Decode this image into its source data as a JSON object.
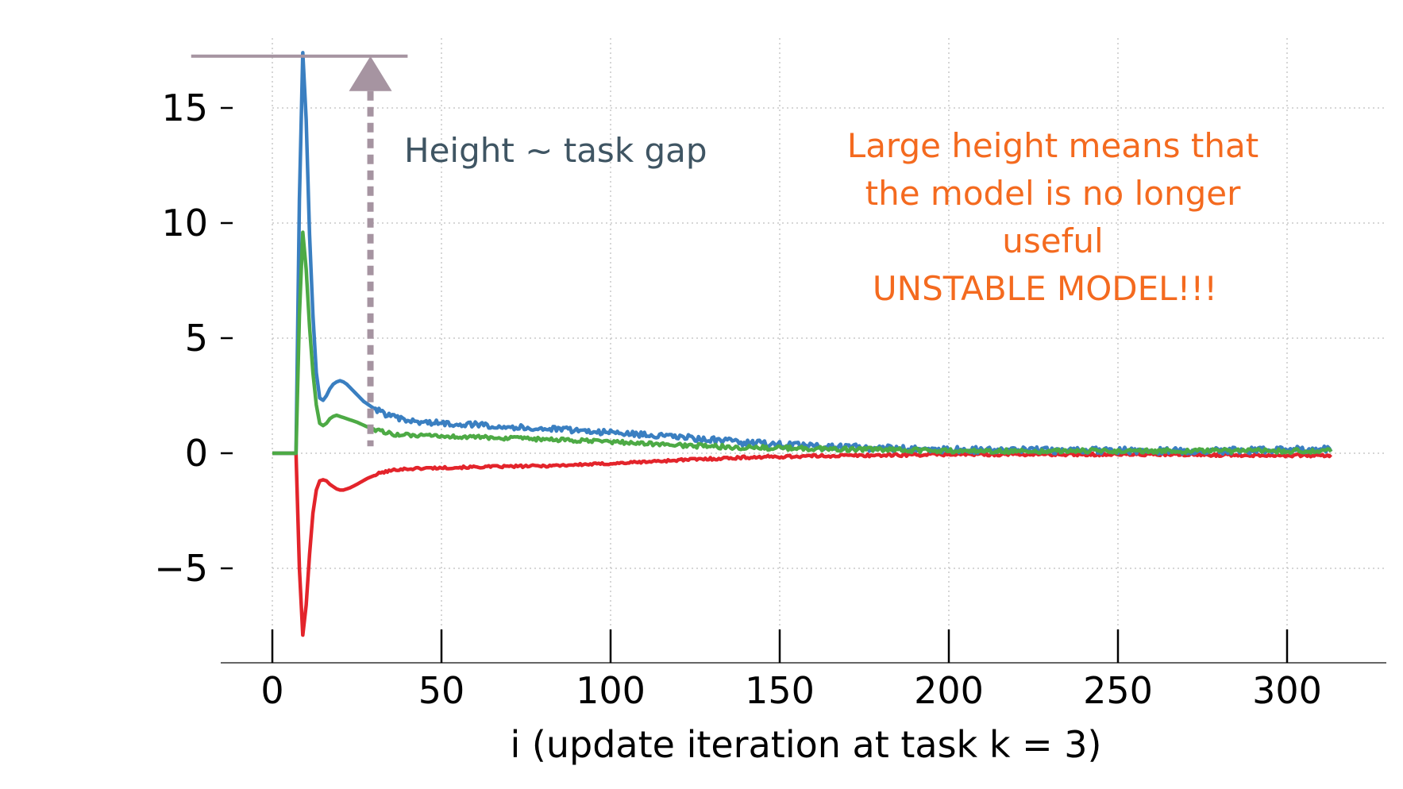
{
  "chart_data": {
    "type": "line",
    "title": "",
    "xlabel": "i (update iteration at task k = 3)",
    "ylabel": "",
    "xlim": [
      -15,
      328
    ],
    "ylim": [
      -9,
      18
    ],
    "grid": true,
    "x_ticks": [
      0,
      50,
      100,
      150,
      200,
      250,
      300
    ],
    "x_tick_labels": [
      "0",
      "50",
      "100",
      "150",
      "200",
      "250",
      "300"
    ],
    "y_ticks": [
      -5,
      0,
      5,
      10,
      15
    ],
    "y_tick_labels": [
      "−5",
      "0",
      "5",
      "10",
      "15"
    ],
    "x_max": 313,
    "series": [
      {
        "name": "blue",
        "color": "#3a7fc1",
        "points": [
          [
            0,
            0
          ],
          [
            7,
            0
          ],
          [
            8,
            11
          ],
          [
            9,
            17.4
          ],
          [
            10,
            14.5
          ],
          [
            11,
            9.5
          ],
          [
            12,
            6
          ],
          [
            13,
            3.5
          ],
          [
            14,
            2.4
          ],
          [
            15,
            2.3
          ],
          [
            16,
            2.5
          ],
          [
            17,
            2.8
          ],
          [
            18,
            3.0
          ],
          [
            19,
            3.1
          ],
          [
            20,
            3.15
          ],
          [
            21,
            3.1
          ],
          [
            22,
            3.0
          ],
          [
            23,
            2.85
          ],
          [
            25,
            2.55
          ],
          [
            27,
            2.25
          ],
          [
            30,
            1.95
          ],
          [
            35,
            1.6
          ],
          [
            40,
            1.4
          ],
          [
            45,
            1.35
          ],
          [
            50,
            1.3
          ],
          [
            60,
            1.25
          ],
          [
            75,
            1.1
          ],
          [
            90,
            1.0
          ],
          [
            100,
            0.9
          ],
          [
            120,
            0.7
          ],
          [
            140,
            0.45
          ],
          [
            160,
            0.3
          ],
          [
            180,
            0.22
          ],
          [
            200,
            0.15
          ],
          [
            240,
            0.12
          ],
          [
            280,
            0.1
          ],
          [
            313,
            0.2
          ]
        ],
        "noise": 0.12
      },
      {
        "name": "green",
        "color": "#4daa45",
        "points": [
          [
            0,
            0
          ],
          [
            7,
            0
          ],
          [
            8,
            6
          ],
          [
            9,
            9.6
          ],
          [
            10,
            8
          ],
          [
            11,
            5.5
          ],
          [
            12,
            3.5
          ],
          [
            13,
            2.1
          ],
          [
            14,
            1.3
          ],
          [
            15,
            1.2
          ],
          [
            16,
            1.3
          ],
          [
            17,
            1.5
          ],
          [
            18,
            1.6
          ],
          [
            19,
            1.65
          ],
          [
            20,
            1.6
          ],
          [
            22,
            1.5
          ],
          [
            25,
            1.35
          ],
          [
            28,
            1.15
          ],
          [
            32,
            0.95
          ],
          [
            37,
            0.8
          ],
          [
            45,
            0.75
          ],
          [
            60,
            0.7
          ],
          [
            80,
            0.6
          ],
          [
            100,
            0.5
          ],
          [
            120,
            0.35
          ],
          [
            140,
            0.25
          ],
          [
            160,
            0.2
          ],
          [
            200,
            0.1
          ],
          [
            250,
            0.1
          ],
          [
            313,
            0.1
          ]
        ],
        "noise": 0.08
      },
      {
        "name": "red",
        "color": "#e3242b",
        "points": [
          [
            0,
            0
          ],
          [
            7,
            0
          ],
          [
            8,
            -5
          ],
          [
            9,
            -7.9
          ],
          [
            10,
            -6.6
          ],
          [
            11,
            -4.4
          ],
          [
            12,
            -2.6
          ],
          [
            13,
            -1.6
          ],
          [
            14,
            -1.2
          ],
          [
            15,
            -1.15
          ],
          [
            16,
            -1.2
          ],
          [
            17,
            -1.35
          ],
          [
            18,
            -1.45
          ],
          [
            19,
            -1.55
          ],
          [
            20,
            -1.6
          ],
          [
            21,
            -1.6
          ],
          [
            23,
            -1.5
          ],
          [
            25,
            -1.35
          ],
          [
            28,
            -1.1
          ],
          [
            32,
            -0.85
          ],
          [
            37,
            -0.7
          ],
          [
            45,
            -0.65
          ],
          [
            60,
            -0.6
          ],
          [
            80,
            -0.55
          ],
          [
            100,
            -0.45
          ],
          [
            120,
            -0.3
          ],
          [
            140,
            -0.18
          ],
          [
            160,
            -0.12
          ],
          [
            200,
            -0.05
          ],
          [
            250,
            -0.05
          ],
          [
            313,
            -0.1
          ]
        ],
        "noise": 0.05
      }
    ],
    "annotations": {
      "height_label": "Height ~ task gap",
      "height_label_color": "#3f5563",
      "marker_color": "#a694a1",
      "marker_hline_y": 17.25,
      "marker_hline_x_range": [
        -24,
        40
      ],
      "marker_arrow_x": 29,
      "marker_arrow_y_range": [
        0.3,
        17.25
      ],
      "warning_lines": [
        "Large height means that",
        "the model is no longer",
        "useful",
        "UNSTABLE MODEL!!!"
      ],
      "warning_color": "#f46a1f"
    }
  }
}
